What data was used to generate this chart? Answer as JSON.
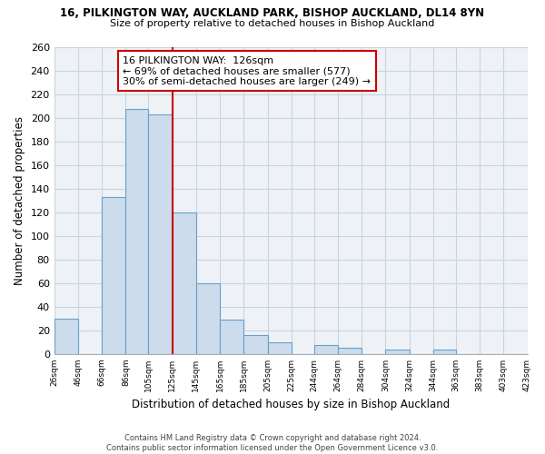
{
  "title": "16, PILKINGTON WAY, AUCKLAND PARK, BISHOP AUCKLAND, DL14 8YN",
  "subtitle": "Size of property relative to detached houses in Bishop Auckland",
  "xlabel": "Distribution of detached houses by size in Bishop Auckland",
  "ylabel": "Number of detached properties",
  "bar_color": "#ccdcec",
  "bar_edge_color": "#6a9fc8",
  "vline_x": 125,
  "vline_color": "#cc0000",
  "annotation_title": "16 PILKINGTON WAY:  126sqm",
  "annotation_line1": "← 69% of detached houses are smaller (577)",
  "annotation_line2": "30% of semi-detached houses are larger (249) →",
  "annotation_box_color": "#ffffff",
  "annotation_box_edge": "#cc0000",
  "bins": [
    26,
    46,
    66,
    86,
    105,
    125,
    145,
    165,
    185,
    205,
    225,
    244,
    264,
    284,
    304,
    324,
    344,
    363,
    383,
    403,
    423
  ],
  "counts": [
    30,
    0,
    133,
    207,
    203,
    120,
    60,
    29,
    16,
    10,
    0,
    8,
    5,
    0,
    4,
    0,
    4,
    0,
    0,
    0
  ],
  "ylim": [
    0,
    260
  ],
  "yticks": [
    0,
    20,
    40,
    60,
    80,
    100,
    120,
    140,
    160,
    180,
    200,
    220,
    240,
    260
  ],
  "footer1": "Contains HM Land Registry data © Crown copyright and database right 2024.",
  "footer2": "Contains public sector information licensed under the Open Government Licence v3.0.",
  "bg_color": "#ffffff",
  "plot_bg_color": "#eef2f7",
  "grid_color": "#c8d4e0"
}
